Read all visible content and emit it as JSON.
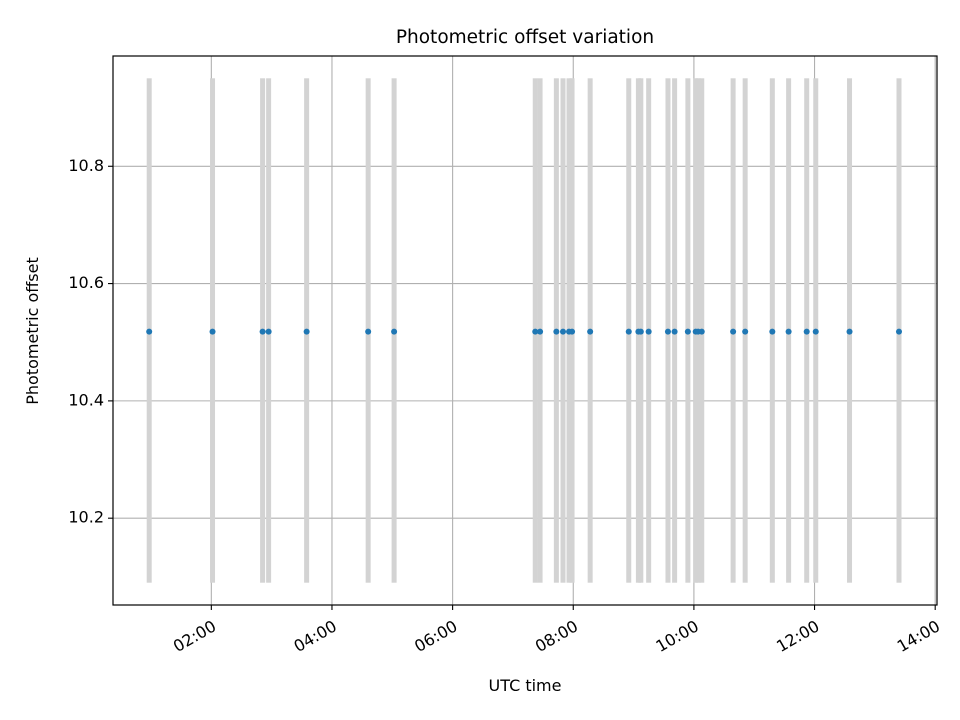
{
  "chart_data": {
    "type": "scatter",
    "title": "Photometric offset variation",
    "xlabel": "UTC time",
    "ylabel": "Photometric offset",
    "x_ticks": [
      {
        "hour": 2,
        "label": "02:00"
      },
      {
        "hour": 4,
        "label": "04:00"
      },
      {
        "hour": 6,
        "label": "06:00"
      },
      {
        "hour": 8,
        "label": "08:00"
      },
      {
        "hour": 10,
        "label": "10:00"
      },
      {
        "hour": 12,
        "label": "12:00"
      },
      {
        "hour": 14,
        "label": "14:00"
      }
    ],
    "y_ticks": [
      {
        "value": 10.2,
        "label": "10.2"
      },
      {
        "value": 10.4,
        "label": "10.4"
      },
      {
        "value": 10.6,
        "label": "10.6"
      },
      {
        "value": 10.8,
        "label": "10.8"
      }
    ],
    "xlim_hours": [
      0.37,
      14.03
    ],
    "ylim": [
      10.052,
      10.988
    ],
    "grid": true,
    "marker_color": "#1f77b4",
    "span_color": "#d3d3d3",
    "span_ylim": [
      10.09,
      10.95
    ],
    "points": {
      "y": 10.518,
      "x_hours": [
        0.97,
        2.02,
        2.85,
        2.95,
        3.58,
        4.6,
        5.03,
        7.37,
        7.45,
        7.72,
        7.83,
        7.93,
        7.98,
        8.28,
        8.92,
        9.08,
        9.12,
        9.25,
        9.57,
        9.68,
        9.9,
        10.03,
        10.07,
        10.13,
        10.65,
        10.85,
        11.3,
        11.57,
        11.87,
        12.02,
        12.58,
        13.4
      ]
    }
  }
}
